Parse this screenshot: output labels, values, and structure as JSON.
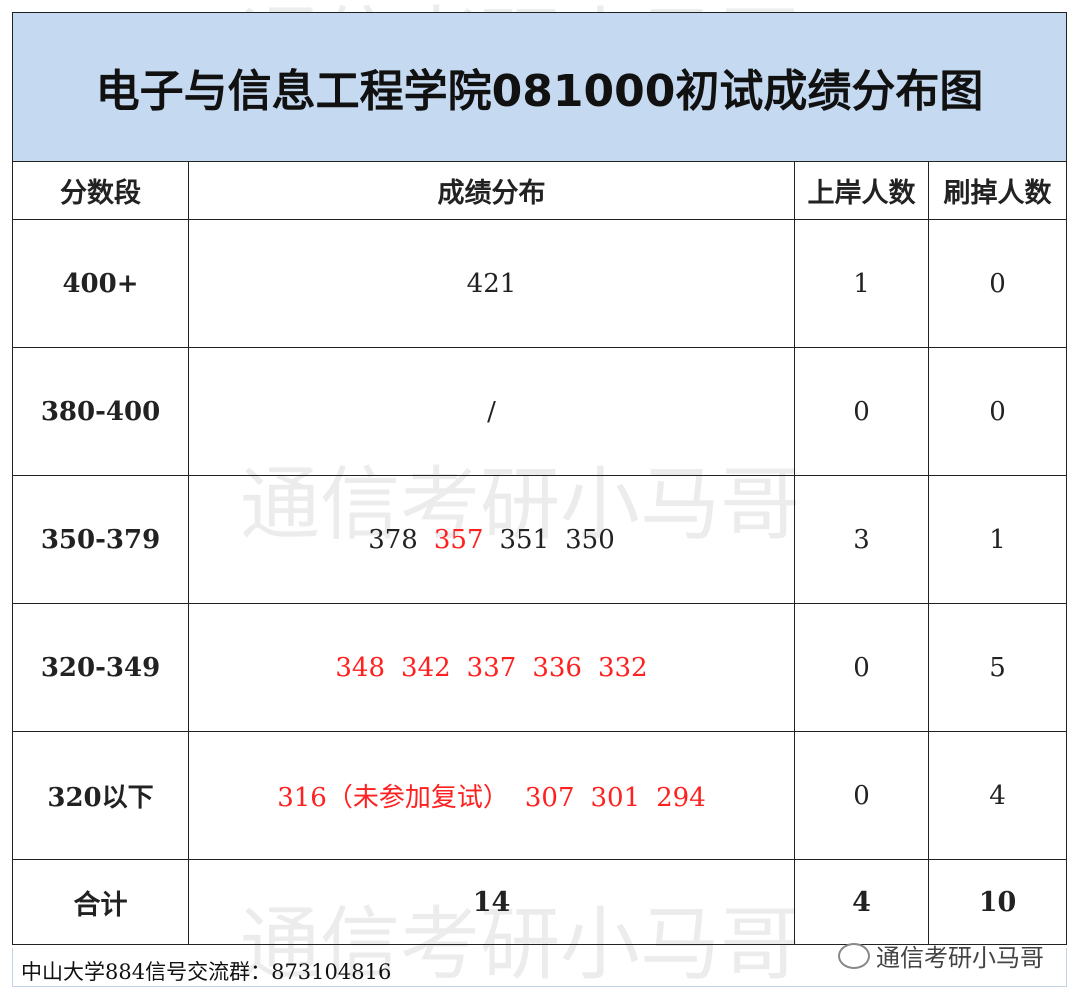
{
  "title": "电子与信息工程学院081000初试成绩分布图",
  "headers": [
    "分数段",
    "成绩分布",
    "上岸人数",
    "刷掉人数"
  ],
  "rows": [
    {
      "segment": "400+",
      "scores": [
        {
          "text": "421",
          "red": false
        }
      ],
      "admitted": "1",
      "rejected": "0"
    },
    {
      "segment": "380-400",
      "scores": [
        {
          "text": "/",
          "red": false
        }
      ],
      "admitted": "0",
      "rejected": "0"
    },
    {
      "segment": "350-379",
      "scores": [
        {
          "text": "378",
          "red": false
        },
        {
          "text": "357",
          "red": true
        },
        {
          "text": "351",
          "red": false
        },
        {
          "text": "350",
          "red": false
        }
      ],
      "admitted": "3",
      "rejected": "1"
    },
    {
      "segment": "320-349",
      "scores": [
        {
          "text": "348",
          "red": true
        },
        {
          "text": "342",
          "red": true
        },
        {
          "text": "337",
          "red": true
        },
        {
          "text": "336",
          "red": true
        },
        {
          "text": "332",
          "red": true
        }
      ],
      "admitted": "0",
      "rejected": "5"
    },
    {
      "segment": "320以下",
      "scores": [
        {
          "text": "316（未参加复试）",
          "red": true
        },
        {
          "text": "307",
          "red": true
        },
        {
          "text": "301",
          "red": true
        },
        {
          "text": "294",
          "red": true
        }
      ],
      "admitted": "0",
      "rejected": "4"
    }
  ],
  "total": {
    "label": "合计",
    "count": "14",
    "admitted": "4",
    "rejected": "10"
  },
  "footer": "中山大学884信号交流群：873104816",
  "watermark": "通信考研小马哥",
  "brand": "通信考研小马哥",
  "colors": {
    "title_bg": "#c5d9f1",
    "rejected_score": "#ff2020"
  }
}
